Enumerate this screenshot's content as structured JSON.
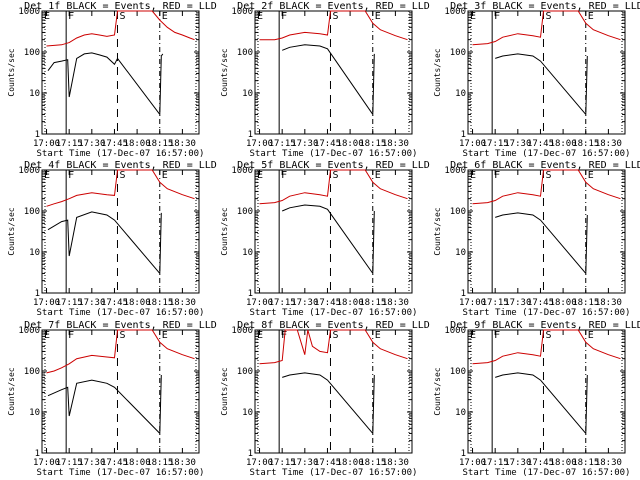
{
  "chart_data": [
    {
      "type": "line",
      "title": "Det 1f BLACK = Events, RED = LLD",
      "xlabel": "Start Time (17-Dec-07 16:57:00)",
      "ylabel": "Counts/sec",
      "xlim": [
        "16:57",
        "18:41"
      ],
      "ylim": [
        1,
        1000
      ],
      "yscale": "log",
      "xticks": [
        "17:00",
        "17:15",
        "17:30",
        "17:45",
        "18:00",
        "18:15",
        "18:30"
      ],
      "yticks": [
        "1",
        "10",
        "100",
        "1000"
      ],
      "markers": [
        "F",
        "S",
        "E"
      ],
      "series": [
        {
          "color": "#cc0000",
          "x": [
            "17:00",
            "17:05",
            "17:10",
            "17:15",
            "17:20",
            "17:25",
            "17:30",
            "17:35",
            "17:40",
            "17:45",
            "17:47",
            "17:50",
            "18:05",
            "18:10",
            "18:15",
            "18:20",
            "18:25",
            "18:30",
            "18:35",
            "18:38"
          ],
          "y": [
            140,
            145,
            150,
            170,
            220,
            260,
            280,
            260,
            240,
            260,
            1000,
            1000,
            1000,
            1000,
            600,
            400,
            300,
            260,
            220,
            200
          ]
        },
        {
          "color": "#000000",
          "x": [
            "17:01",
            "17:05",
            "17:10",
            "17:14",
            "17:15",
            "17:20",
            "17:25",
            "17:30",
            "17:35",
            "17:40",
            "17:45",
            "17:47",
            "18:15",
            "18:16",
            "18:17"
          ],
          "y": [
            35,
            55,
            60,
            65,
            8,
            70,
            90,
            95,
            85,
            75,
            50,
            70,
            3,
            80,
            90
          ]
        }
      ]
    },
    {
      "type": "line",
      "title": "Det 2f BLACK = Events, RED = LLD",
      "xlabel": "Start Time (17-Dec-07 16:57:00)",
      "ylabel": "Counts/sec",
      "xlim": [
        "16:57",
        "18:41"
      ],
      "ylim": [
        1,
        1000
      ],
      "yscale": "log",
      "xticks": [
        "17:00",
        "17:15",
        "17:30",
        "17:45",
        "18:00",
        "18:15",
        "18:30"
      ],
      "yticks": [
        "1",
        "10",
        "100",
        "1000"
      ],
      "markers": [
        "F",
        "S",
        "E"
      ],
      "series": [
        {
          "color": "#cc0000",
          "x": [
            "17:00",
            "17:10",
            "17:15",
            "17:20",
            "17:30",
            "17:40",
            "17:45",
            "17:47",
            "17:50",
            "18:10",
            "18:15",
            "18:20",
            "18:30",
            "18:38"
          ],
          "y": [
            200,
            200,
            220,
            260,
            300,
            280,
            260,
            1000,
            1000,
            1000,
            500,
            350,
            250,
            200
          ]
        },
        {
          "color": "#000000",
          "x": [
            "17:15",
            "17:20",
            "17:30",
            "17:40",
            "17:45",
            "18:15",
            "18:16"
          ],
          "y": [
            110,
            130,
            150,
            140,
            120,
            3,
            90
          ]
        }
      ]
    },
    {
      "type": "line",
      "title": "Det 3f BLACK = Events, RED = LLD",
      "xlabel": "Start Time (17-Dec-07 16:57:00)",
      "ylabel": "Counts/sec",
      "xlim": [
        "16:57",
        "18:41"
      ],
      "ylim": [
        1,
        1000
      ],
      "yscale": "log",
      "xticks": [
        "17:00",
        "17:15",
        "17:30",
        "17:45",
        "18:00",
        "18:15",
        "18:30"
      ],
      "yticks": [
        "1",
        "10",
        "100",
        "1000"
      ],
      "markers": [
        "F",
        "S",
        "E"
      ],
      "series": [
        {
          "color": "#cc0000",
          "x": [
            "17:00",
            "17:10",
            "17:15",
            "17:20",
            "17:30",
            "17:40",
            "17:45",
            "17:47",
            "17:50",
            "18:10",
            "18:15",
            "18:20",
            "18:30",
            "18:38"
          ],
          "y": [
            150,
            160,
            180,
            230,
            280,
            250,
            230,
            1000,
            1000,
            1000,
            500,
            350,
            250,
            200
          ]
        },
        {
          "color": "#000000",
          "x": [
            "17:15",
            "17:20",
            "17:30",
            "17:40",
            "17:45",
            "18:15",
            "18:16"
          ],
          "y": [
            70,
            80,
            90,
            80,
            60,
            3,
            80
          ]
        }
      ]
    },
    {
      "type": "line",
      "title": "Det 4f BLACK = Events, RED = LLD",
      "xlabel": "Start Time (17-Dec-07 16:57:00)",
      "ylabel": "Counts/sec",
      "xlim": [
        "16:57",
        "18:41"
      ],
      "ylim": [
        1,
        1000
      ],
      "yscale": "log",
      "xticks": [
        "17:00",
        "17:15",
        "17:30",
        "17:45",
        "18:00",
        "18:15",
        "18:30"
      ],
      "yticks": [
        "1",
        "10",
        "100",
        "1000"
      ],
      "markers": [
        "F",
        "S",
        "E"
      ],
      "series": [
        {
          "color": "#cc0000",
          "x": [
            "17:00",
            "17:05",
            "17:10",
            "17:15",
            "17:20",
            "17:30",
            "17:40",
            "17:45",
            "17:47",
            "17:50",
            "18:10",
            "18:15",
            "18:20",
            "18:30",
            "18:38"
          ],
          "y": [
            130,
            150,
            170,
            200,
            240,
            280,
            250,
            240,
            1000,
            1000,
            1000,
            500,
            350,
            250,
            200
          ]
        },
        {
          "color": "#000000",
          "x": [
            "17:01",
            "17:10",
            "17:14",
            "17:15",
            "17:20",
            "17:30",
            "17:40",
            "17:45",
            "18:15",
            "18:16"
          ],
          "y": [
            35,
            55,
            60,
            8,
            70,
            95,
            80,
            60,
            3,
            90
          ]
        }
      ]
    },
    {
      "type": "line",
      "title": "Det 5f BLACK = Events, RED = LLD",
      "xlabel": "Start Time (17-Dec-07 16:57:00)",
      "ylabel": "Counts/sec",
      "xlim": [
        "16:57",
        "18:41"
      ],
      "ylim": [
        1,
        1000
      ],
      "yscale": "log",
      "xticks": [
        "17:00",
        "17:15",
        "17:30",
        "17:45",
        "18:00",
        "18:15",
        "18:30"
      ],
      "yticks": [
        "1",
        "10",
        "100",
        "1000"
      ],
      "markers": [
        "F",
        "S",
        "E"
      ],
      "series": [
        {
          "color": "#cc0000",
          "x": [
            "17:00",
            "17:10",
            "17:15",
            "17:20",
            "17:30",
            "17:40",
            "17:45",
            "17:47",
            "17:50",
            "18:10",
            "18:15",
            "18:20",
            "18:30",
            "18:38"
          ],
          "y": [
            150,
            160,
            180,
            230,
            280,
            250,
            230,
            1000,
            1000,
            1000,
            500,
            350,
            250,
            200
          ]
        },
        {
          "color": "#000000",
          "x": [
            "17:15",
            "17:20",
            "17:30",
            "17:40",
            "17:45",
            "18:15",
            "18:16"
          ],
          "y": [
            100,
            120,
            140,
            130,
            110,
            3,
            100
          ]
        }
      ]
    },
    {
      "type": "line",
      "title": "Det 6f BLACK = Events, RED = LLD",
      "xlabel": "Start Time (17-Dec-07 16:57:00)",
      "ylabel": "Counts/sec",
      "xlim": [
        "16:57",
        "18:41"
      ],
      "ylim": [
        1,
        1000
      ],
      "yscale": "log",
      "xticks": [
        "17:00",
        "17:15",
        "17:30",
        "17:45",
        "18:00",
        "18:15",
        "18:30"
      ],
      "yticks": [
        "1",
        "10",
        "100",
        "1000"
      ],
      "markers": [
        "F",
        "S",
        "E"
      ],
      "series": [
        {
          "color": "#cc0000",
          "x": [
            "17:00",
            "17:10",
            "17:15",
            "17:20",
            "17:30",
            "17:40",
            "17:45",
            "17:47",
            "17:50",
            "18:10",
            "18:15",
            "18:20",
            "18:30",
            "18:38"
          ],
          "y": [
            150,
            160,
            180,
            230,
            280,
            250,
            230,
            1000,
            1000,
            1000,
            500,
            350,
            250,
            200
          ]
        },
        {
          "color": "#000000",
          "x": [
            "17:15",
            "17:20",
            "17:30",
            "17:40",
            "17:45",
            "18:15",
            "18:16"
          ],
          "y": [
            70,
            80,
            90,
            80,
            60,
            3,
            80
          ]
        }
      ]
    },
    {
      "type": "line",
      "title": "Det 7f BLACK = Events, RED = LLD",
      "xlabel": "Start Time (17-Dec-07 16:57:00)",
      "ylabel": "Counts/sec",
      "xlim": [
        "16:57",
        "18:41"
      ],
      "ylim": [
        1,
        1000
      ],
      "yscale": "log",
      "xticks": [
        "17:00",
        "17:15",
        "17:30",
        "17:45",
        "18:00",
        "18:15",
        "18:30"
      ],
      "yticks": [
        "1",
        "10",
        "100",
        "1000"
      ],
      "markers": [
        "F",
        "S",
        "E"
      ],
      "series": [
        {
          "color": "#cc0000",
          "x": [
            "17:00",
            "17:05",
            "17:10",
            "17:15",
            "17:20",
            "17:30",
            "17:40",
            "17:45",
            "17:47",
            "17:50",
            "18:10",
            "18:15",
            "18:20",
            "18:30",
            "18:38"
          ],
          "y": [
            90,
            100,
            120,
            150,
            200,
            240,
            220,
            210,
            1000,
            1000,
            1000,
            500,
            350,
            250,
            200
          ]
        },
        {
          "color": "#000000",
          "x": [
            "17:01",
            "17:10",
            "17:14",
            "17:15",
            "17:20",
            "17:30",
            "17:40",
            "17:45",
            "18:15",
            "18:16"
          ],
          "y": [
            25,
            35,
            40,
            8,
            50,
            60,
            50,
            40,
            3,
            80
          ]
        }
      ]
    },
    {
      "type": "line",
      "title": "Det 8f BLACK = Events, RED = LLD",
      "xlabel": "Start Time (17-Dec-07 16:57:00)",
      "ylabel": "Counts/sec",
      "xlim": [
        "16:57",
        "18:41"
      ],
      "ylim": [
        1,
        1000
      ],
      "yscale": "log",
      "xticks": [
        "17:00",
        "17:15",
        "17:30",
        "17:45",
        "18:00",
        "18:15",
        "18:30"
      ],
      "yticks": [
        "1",
        "10",
        "100",
        "1000"
      ],
      "markers": [
        "F",
        "S",
        "E"
      ],
      "series": [
        {
          "color": "#cc0000",
          "x": [
            "17:00",
            "17:10",
            "17:15",
            "17:17",
            "17:25",
            "17:30",
            "17:32",
            "17:35",
            "17:40",
            "17:45",
            "17:47",
            "17:50",
            "18:10",
            "18:15",
            "18:20",
            "18:30",
            "18:38"
          ],
          "y": [
            150,
            160,
            180,
            1000,
            1000,
            250,
            1000,
            400,
            300,
            280,
            1000,
            1000,
            1000,
            500,
            350,
            250,
            200
          ]
        },
        {
          "color": "#000000",
          "x": [
            "17:15",
            "17:20",
            "17:30",
            "17:40",
            "17:45",
            "18:15",
            "18:16"
          ],
          "y": [
            70,
            80,
            90,
            80,
            60,
            3,
            80
          ]
        }
      ]
    },
    {
      "type": "line",
      "title": "Det 9f BLACK = Events, RED = LLD",
      "xlabel": "Start Time (17-Dec-07 16:57:00)",
      "ylabel": "Counts/sec",
      "xlim": [
        "16:57",
        "18:41"
      ],
      "ylim": [
        1,
        1000
      ],
      "yscale": "log",
      "xticks": [
        "17:00",
        "17:15",
        "17:30",
        "17:45",
        "18:00",
        "18:15",
        "18:30"
      ],
      "yticks": [
        "1",
        "10",
        "100",
        "1000"
      ],
      "markers": [
        "F",
        "S",
        "E"
      ],
      "series": [
        {
          "color": "#cc0000",
          "x": [
            "17:00",
            "17:10",
            "17:15",
            "17:20",
            "17:30",
            "17:40",
            "17:45",
            "17:47",
            "17:50",
            "18:10",
            "18:15",
            "18:20",
            "18:30",
            "18:38"
          ],
          "y": [
            150,
            160,
            180,
            230,
            280,
            250,
            230,
            1000,
            1000,
            1000,
            500,
            350,
            250,
            200
          ]
        },
        {
          "color": "#000000",
          "x": [
            "17:15",
            "17:20",
            "17:30",
            "17:40",
            "17:45",
            "18:15",
            "18:16"
          ],
          "y": [
            70,
            80,
            90,
            80,
            60,
            3,
            80
          ]
        }
      ]
    }
  ]
}
